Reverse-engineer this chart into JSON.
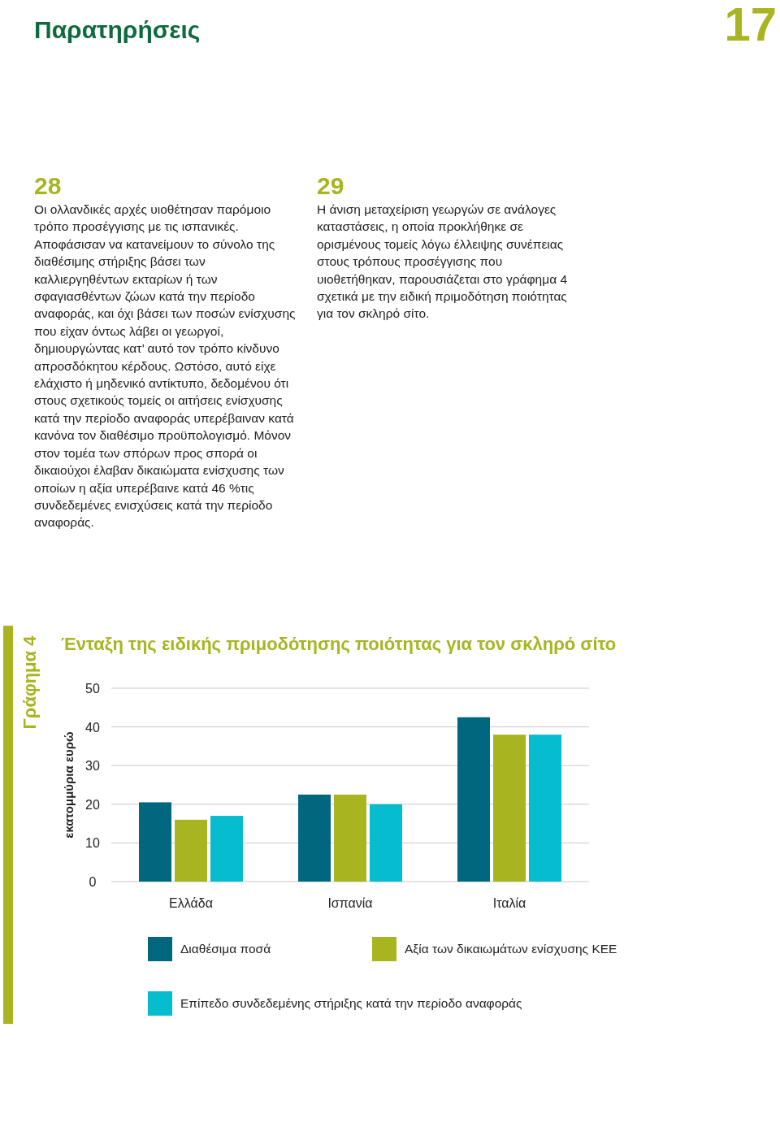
{
  "chart_data": {
    "type": "bar",
    "title": "Ένταξη της ειδικής πριμοδότησης ποιότητας για τον σκληρό σίτο",
    "ylabel": "εκατομμύρια ευρώ",
    "categories": [
      "Ελλάδα",
      "Ισπανία",
      "Ιταλία"
    ],
    "series": [
      {
        "name": "Διαθέσιμα ποσά",
        "color": "#00677f",
        "values": [
          20.5,
          22.5,
          42.5
        ]
      },
      {
        "name": "Αξία των δικαιωμάτων ενίσχυσης ΚΕΕ",
        "color": "#a8b521",
        "values": [
          16,
          22.5,
          38
        ]
      },
      {
        "name": "Επίπεδο συνδεδεμένης στήριξης κατά την περίοδο αναφοράς",
        "color": "#06bccf",
        "values": [
          17,
          20,
          38
        ]
      }
    ],
    "ylim": [
      0,
      50
    ],
    "yticks": [
      0,
      10,
      20,
      30,
      40,
      50
    ],
    "grid": "y",
    "legend": "bottom",
    "annotations": [
      "Παρατηρήσεις",
      "17",
      "28",
      "Οι ολλανδικές αρχές υιοθέτησαν παρόμοιο τρόπο προσέγγισης με τις ισπανικές. Αποφάσισαν να κατανείμουν το σύνολο της διαθέσιμης στήριξης βάσει των καλλιεργηθέντων εκταρίων ή των σφαγιασθέντων ζώων κατά την περίοδο αναφοράς, και όχι βάσει των ποσών ενίσχυσης που είχαν όντως λάβει οι γεωργοί, δημιουργώντας κατ’ αυτό τον τρόπο κίνδυνο απροσδόκητου κέρδους. Ωστόσο, αυτό είχε ελάχιστο ή μηδενικό αντίκτυπο, δεδομένου ότι στους σχετικούς τομείς οι αιτήσεις ενίσχυσης κατά την περίοδο αναφοράς υπερέβαιναν κατά κανόνα τον διαθέσιμο προϋπολογισμό. Μόνον στον τομέα των σπόρων προς σπορά οι δικαιούχοι έλαβαν δικαιώματα ενίσχυσης των οποίων η αξία υπερέβαινε κατά 46 %τις συνδεδεμένες ενισχύσεις κατά την περίοδο αναφοράς.",
      "29",
      "Η άνιση μεταχείριση γεωργών σε ανάλογες καταστάσεις, η οποία προκλήθηκε σε ορισμένους τομείς λόγω έλλειψης συνέπειας στους τρόπους προσέγγισης που υιοθετήθηκαν, παρουσιάζεται στο γράφημα 4 σχετικά με την ειδική πριμοδότηση ποιότητας για τον σκληρό σίτο.",
      "Γράφημα 4"
    ]
  }
}
